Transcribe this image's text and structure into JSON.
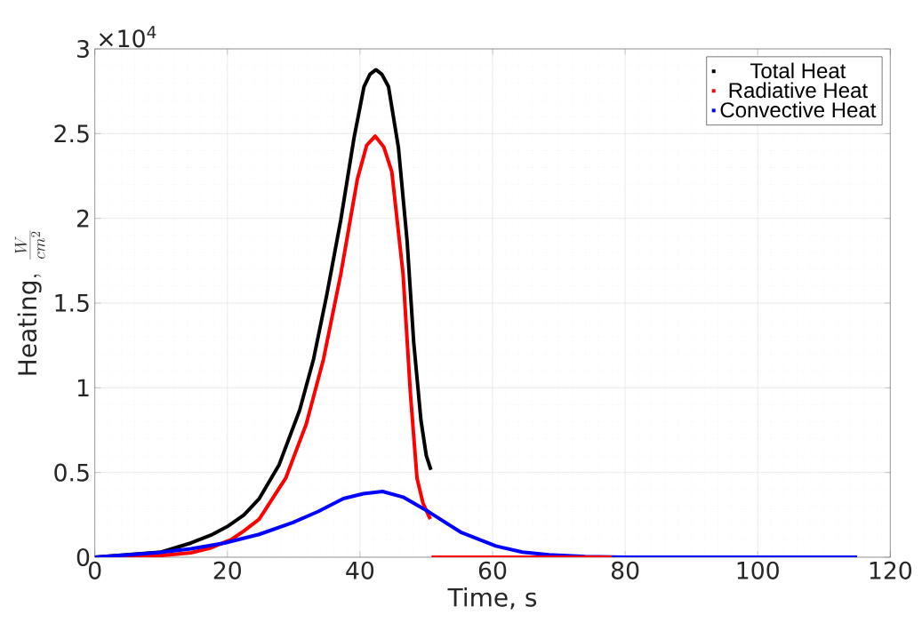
{
  "chart_data": {
    "type": "line",
    "xlabel": "Time, s",
    "ylabel": "\\mathrm{Heating},\\ \\frac{W}{cm^2}",
    "annotations": [
      "×10$^{4}$"
    ],
    "xlim": [
      0,
      120
    ],
    "xticks": [
      0,
      20,
      40,
      60,
      80,
      100,
      120
    ],
    "ylim": [
      0,
      3
    ],
    "yticks": [
      0,
      0.5,
      1,
      1.5,
      2,
      2.5,
      3
    ],
    "grid": true,
    "legend": "top right",
    "series": [
      {
        "name": "Total Heat",
        "color": "#000000",
        "x": [
          0,
          10,
          14.5,
          17.5,
          20.1,
          22.5,
          24.8,
          27.8,
          30.9,
          33.0,
          35.0,
          37.1,
          39.1,
          40.6,
          41.5,
          42.4,
          43.3,
          44.3,
          45.8,
          47.1,
          48.1,
          49.2,
          50.0,
          50.7
        ],
        "values": [
          0,
          0.03,
          0.084,
          0.13,
          0.184,
          0.25,
          0.346,
          0.546,
          0.868,
          1.17,
          1.55,
          1.99,
          2.475,
          2.777,
          2.85,
          2.877,
          2.85,
          2.777,
          2.417,
          1.87,
          1.27,
          0.807,
          0.6,
          0.516
        ]
      },
      {
        "name": "Radiative Heat",
        "color": "#ff0000",
        "x": [
          0,
          5,
          10,
          14.5,
          17.5,
          20.6,
          22.5,
          24.8,
          28.8,
          31.9,
          34.5,
          37.1,
          39.6,
          41.0,
          42.3,
          43.6,
          44.8,
          46.5,
          47.6,
          48.6,
          49.5,
          50.6
        ],
        "values": [
          0,
          0.002,
          0.01,
          0.026,
          0.055,
          0.105,
          0.155,
          0.225,
          0.467,
          0.787,
          1.17,
          1.67,
          2.23,
          2.43,
          2.485,
          2.42,
          2.275,
          1.67,
          0.97,
          0.467,
          0.32,
          0.225
        ]
      },
      {
        "name": "Convective Heat",
        "color": "#0000ff",
        "x": [
          0,
          9.3,
          14.5,
          19.6,
          24.8,
          29.9,
          33.7,
          37.5,
          40.5,
          43.4,
          46.5,
          50.4,
          55.2,
          60.5,
          64.5,
          68.5,
          74,
          80,
          115
        ],
        "values": [
          0,
          0.026,
          0.05,
          0.084,
          0.135,
          0.205,
          0.27,
          0.346,
          0.375,
          0.388,
          0.355,
          0.267,
          0.148,
          0.066,
          0.03,
          0.014,
          0.004,
          0,
          0
        ]
      },
      {
        "color": "#ff0000",
        "x": [
          50.8,
          78
        ],
        "values": [
          0,
          0
        ]
      }
    ]
  }
}
